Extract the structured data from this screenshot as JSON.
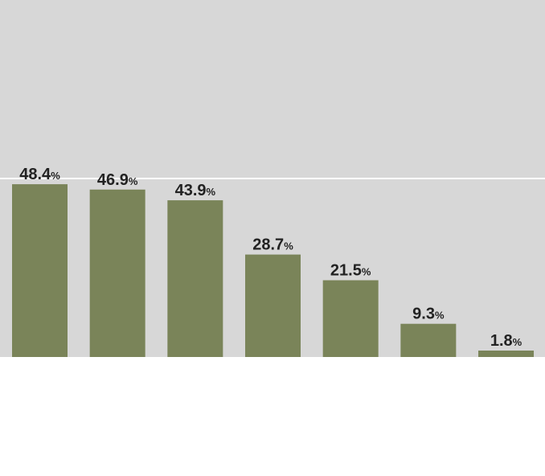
{
  "chart_data": {
    "type": "bar",
    "values": [
      48.4,
      46.9,
      43.9,
      28.7,
      21.5,
      9.3,
      1.8
    ],
    "value_labels": [
      "48.4",
      "46.9",
      "43.9",
      "28.7",
      "21.5",
      "9.3",
      "1.8"
    ],
    "value_unit": "%",
    "ylim": [
      0,
      100
    ],
    "reference_line": 50,
    "grid": false,
    "legend": "none"
  },
  "colors": {
    "panel_background": "#d7d7d7",
    "bar": "#7a8459",
    "reference_line": "#ffffff",
    "label_text": "#222222",
    "page_background": "#ffffff"
  }
}
